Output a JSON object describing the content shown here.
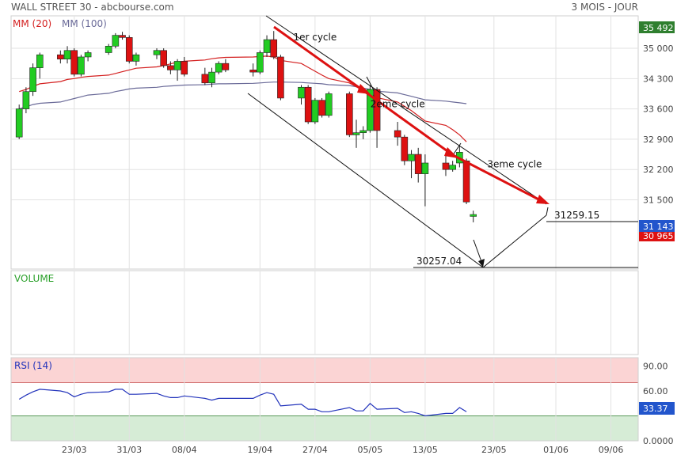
{
  "header": {
    "title": "WALL STREET 30 - abcbourse.com",
    "period": "3 MOIS - JOUR",
    "legend": [
      {
        "label": "MM (20)",
        "color": "#d42020"
      },
      {
        "label": "MM (100)",
        "color": "#6a6a98"
      }
    ]
  },
  "colors": {
    "up": "#22cc22",
    "down": "#dd1111",
    "grid": "#e2e2e2",
    "ma20": "#d42020",
    "ma100": "#6a6a98",
    "rsi": "#2233bb",
    "annotation": "#dd1111",
    "price_badge": "#2255cc",
    "top_badge": "#2f7f2f",
    "rsi_upper_band": "#fbd4d4",
    "rsi_lower_band": "#d6ecd6"
  },
  "chart_data": [
    {
      "type": "candlestick",
      "name": "WALL STREET 30",
      "ylim": [
        29900,
        35750
      ],
      "y_ticks": [
        35000,
        34300,
        33600,
        32900,
        32200,
        31500
      ],
      "y_tick_labels": [
        "35 000",
        "34 300",
        "33 600",
        "32 900",
        "32 200",
        "31 500"
      ],
      "x_dates": [
        "2022-03-15",
        "2022-03-16",
        "2022-03-17",
        "2022-03-18",
        "2022-03-21",
        "2022-03-22",
        "2022-03-23",
        "2022-03-24",
        "2022-03-25",
        "2022-03-28",
        "2022-03-29",
        "2022-03-30",
        "2022-03-31",
        "2022-04-01",
        "2022-04-04",
        "2022-04-05",
        "2022-04-06",
        "2022-04-07",
        "2022-04-08",
        "2022-04-11",
        "2022-04-12",
        "2022-04-13",
        "2022-04-14",
        "2022-04-18",
        "2022-04-19",
        "2022-04-20",
        "2022-04-21",
        "2022-04-22",
        "2022-04-25",
        "2022-04-26",
        "2022-04-27",
        "2022-04-28",
        "2022-04-29",
        "2022-05-02",
        "2022-05-03",
        "2022-05-04",
        "2022-05-05",
        "2022-05-06",
        "2022-05-09",
        "2022-05-10",
        "2022-05-11",
        "2022-05-12",
        "2022-05-13",
        "2022-05-16",
        "2022-05-17",
        "2022-05-18",
        "2022-05-19"
      ],
      "x_tick_labels": [
        "23/03",
        "31/03",
        "08/04",
        "19/04",
        "27/04",
        "05/05",
        "13/05",
        "23/05",
        "01/06",
        "09/06"
      ],
      "x_tick_dates": [
        "2022-03-23",
        "2022-03-31",
        "2022-04-08",
        "2022-04-19",
        "2022-04-27",
        "2022-05-05",
        "2022-05-13",
        "2022-05-23",
        "2022-06-01",
        "2022-06-09"
      ],
      "ohlc": [
        [
          32950,
          33700,
          32900,
          33600
        ],
        [
          33600,
          34100,
          33500,
          34000
        ],
        [
          34000,
          34650,
          33900,
          34550
        ],
        [
          34550,
          34900,
          34300,
          34850
        ],
        [
          34850,
          34950,
          34650,
          34750
        ],
        [
          34750,
          35050,
          34650,
          34950
        ],
        [
          34950,
          35000,
          34350,
          34400
        ],
        [
          34400,
          34850,
          34350,
          34800
        ],
        [
          34800,
          34950,
          34700,
          34900
        ],
        [
          34900,
          35100,
          34850,
          35050
        ],
        [
          35050,
          35350,
          35000,
          35300
        ],
        [
          35300,
          35380,
          35200,
          35250
        ],
        [
          35250,
          35300,
          34650,
          34700
        ],
        [
          34700,
          34900,
          34600,
          34850
        ],
        [
          34850,
          35000,
          34750,
          34950
        ],
        [
          34950,
          35000,
          34550,
          34600
        ],
        [
          34600,
          34700,
          34400,
          34500
        ],
        [
          34500,
          34750,
          34250,
          34700
        ],
        [
          34700,
          34800,
          34350,
          34400
        ],
        [
          34400,
          34550,
          34150,
          34200
        ],
        [
          34200,
          34550,
          34100,
          34450
        ],
        [
          34450,
          34700,
          34400,
          34650
        ],
        [
          34650,
          34750,
          34450,
          34500
        ],
        [
          34500,
          34650,
          34350,
          34450
        ],
        [
          34450,
          34950,
          34400,
          34900
        ],
        [
          34900,
          35300,
          34800,
          35200
        ],
        [
          35200,
          35400,
          34750,
          34800
        ],
        [
          34800,
          34850,
          33800,
          33850
        ],
        [
          33850,
          34150,
          33700,
          34100
        ],
        [
          34100,
          34150,
          33250,
          33300
        ],
        [
          33300,
          33850,
          33250,
          33800
        ],
        [
          33800,
          33850,
          33400,
          33450
        ],
        [
          33450,
          34000,
          33400,
          33950
        ],
        [
          33950,
          34000,
          32950,
          33000
        ],
        [
          33000,
          33350,
          32700,
          33050
        ],
        [
          33050,
          33200,
          32900,
          33100
        ],
        [
          33100,
          34150,
          33050,
          34050
        ],
        [
          34050,
          34100,
          32700,
          33100
        ],
        [
          33100,
          33300,
          32750,
          32950
        ],
        [
          32950,
          33000,
          32300,
          32400
        ],
        [
          32400,
          32650,
          32000,
          32550
        ],
        [
          32550,
          32700,
          31900,
          32100
        ],
        [
          32100,
          32550,
          31350,
          32350
        ],
        [
          32350,
          32550,
          32050,
          32200
        ],
        [
          32200,
          32400,
          32150,
          32300
        ],
        [
          32350,
          32750,
          32250,
          32600
        ],
        [
          32400,
          32450,
          31400,
          31450
        ]
      ],
      "doji": {
        "date": "2022-05-20",
        "ohlc": [
          31143,
          31250,
          30980,
          31143
        ]
      },
      "ma20": [
        34000,
        34050,
        34120,
        34180,
        34230,
        34280,
        34300,
        34330,
        34350,
        34380,
        34420,
        34460,
        34500,
        34540,
        34570,
        34600,
        34640,
        34680,
        34700,
        34730,
        34760,
        34780,
        34790,
        34800,
        34810,
        34820,
        34800,
        34720,
        34650,
        34560,
        34470,
        34380,
        34300,
        34200,
        34110,
        34030,
        33960,
        33860,
        33760,
        33660,
        33560,
        33440,
        33320,
        33220,
        33120,
        33000,
        32840
      ],
      "ma100": [
        33600,
        33650,
        33700,
        33730,
        33760,
        33800,
        33840,
        33880,
        33920,
        33960,
        34000,
        34030,
        34060,
        34080,
        34100,
        34120,
        34130,
        34140,
        34150,
        34160,
        34170,
        34180,
        34180,
        34190,
        34200,
        34210,
        34220,
        34220,
        34210,
        34200,
        34190,
        34180,
        34160,
        34140,
        34110,
        34080,
        34050,
        34010,
        33970,
        33930,
        33890,
        33850,
        33810,
        33780,
        33760,
        33740,
        33720
      ],
      "price_labels": {
        "top": "35 492",
        "last": "31 143",
        "ma": "30 965",
        "last_value": 31143
      },
      "annotations": [
        {
          "text": "1er cycle",
          "x": "2022-04-27",
          "y": 35180
        },
        {
          "text": "2eme cycle",
          "x": "2022-05-09",
          "y": 33640
        },
        {
          "text": "3eme cycle",
          "x": "2022-05-26",
          "y": 32250
        },
        {
          "text": "31259.15",
          "value": 31259.15
        },
        {
          "text": "30257.04",
          "value": 30257.04
        }
      ]
    },
    {
      "type": "bar",
      "name": "VOLUME",
      "label": "VOLUME"
    },
    {
      "type": "line",
      "name": "RSI (14)",
      "ylim": [
        0,
        100
      ],
      "y_ticks": [
        90,
        60,
        0
      ],
      "y_tick_labels": [
        "90.00",
        "60.00",
        "0.0000"
      ],
      "bands": {
        "upper": [
          70,
          100
        ],
        "lower": [
          0,
          30
        ]
      },
      "values": [
        50,
        55,
        59,
        62,
        60,
        58,
        53,
        56,
        58,
        59,
        62,
        62,
        56,
        56,
        57,
        54,
        52,
        52,
        54,
        51,
        49,
        51,
        51,
        51,
        55,
        58,
        56,
        42,
        44,
        38,
        38,
        35,
        35,
        40,
        36,
        36,
        45,
        38,
        39,
        34,
        35,
        33,
        30,
        33,
        33,
        40,
        35
      ],
      "last_label": "33.37"
    }
  ]
}
